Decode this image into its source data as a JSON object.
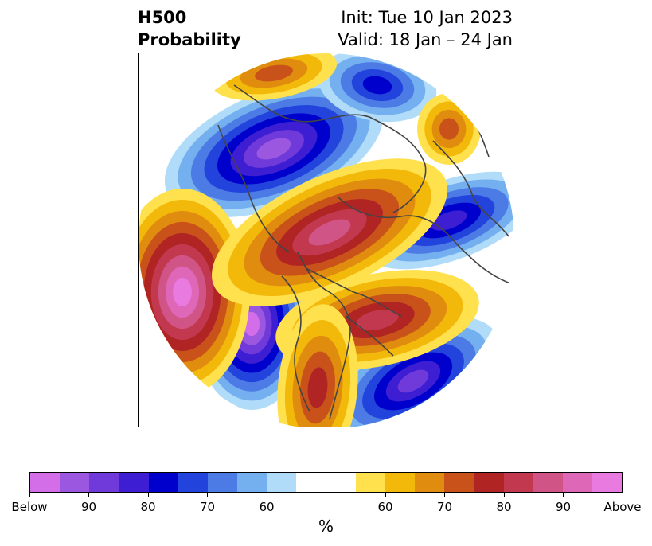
{
  "header": {
    "title_line1": "H500",
    "title_line2": "Probability",
    "init_text": "Init: Tue 10 Jan 2023",
    "valid_text": "Valid: 18 Jan – 24 Jan"
  },
  "map": {
    "projection": "north-polar-stereographic",
    "variable": "500 hPa height probability",
    "anomalies": [
      {
        "kind": "below",
        "peak": 100,
        "region": "Eastern Siberia / Sea of Okhotsk"
      },
      {
        "kind": "below",
        "peak": 100,
        "region": "Gulf of Alaska / NE Pacific"
      },
      {
        "kind": "below",
        "peak": 90,
        "region": "Western North Atlantic"
      },
      {
        "kind": "below",
        "peak": 90,
        "region": "Northern Scandinavia / Barents"
      },
      {
        "kind": "above",
        "peak": 100,
        "region": "Central North Pacific"
      },
      {
        "kind": "above",
        "peak": 90,
        "region": "Arctic / Northern Canada"
      },
      {
        "kind": "above",
        "peak": 90,
        "region": "Central Siberia"
      },
      {
        "kind": "above",
        "peak": 80,
        "region": "Eastern Canada to Greenland"
      },
      {
        "kind": "above",
        "peak": 75,
        "region": "Western Europe"
      }
    ]
  },
  "colorbar": {
    "label": "%",
    "colors": [
      "#d36ee8",
      "#9b57e0",
      "#6f3ad9",
      "#3d1ed2",
      "#0000cc",
      "#2244dd",
      "#4d7be6",
      "#74b0f0",
      "#b0dcf9",
      "#ffffff",
      "#ffffff",
      "#ffe14d",
      "#f2b80a",
      "#e08c0e",
      "#c9521a",
      "#b02424",
      "#c2384f",
      "#d05586",
      "#de67b8",
      "#e87ae0"
    ],
    "tick_labels": [
      "Below",
      "90",
      "80",
      "70",
      "60",
      "60",
      "70",
      "80",
      "90",
      "Above"
    ]
  }
}
